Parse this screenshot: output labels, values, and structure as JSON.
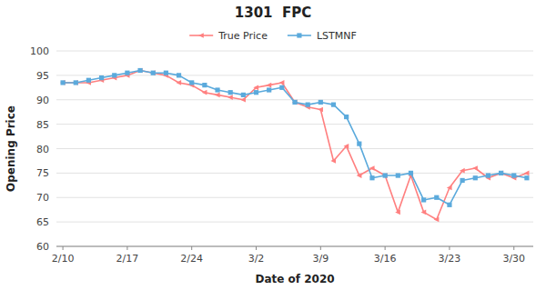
{
  "chart_data": {
    "type": "line",
    "title": "1301  FPC",
    "x_label": "Date of 2020",
    "y_label": "Opening Price",
    "categories": [
      "2/10",
      null,
      null,
      null,
      null,
      "2/17",
      null,
      null,
      null,
      null,
      "2/24",
      null,
      null,
      null,
      null,
      "3/2",
      null,
      null,
      null,
      null,
      "3/9",
      null,
      null,
      null,
      null,
      "3/16",
      null,
      null,
      null,
      null,
      "3/23",
      null,
      null,
      null,
      null,
      "3/30",
      null
    ],
    "series": [
      {
        "name": "True Price",
        "color": "#FF8080",
        "marker": "triangle-left",
        "values": [
          93.5,
          93.5,
          93.5,
          94.0,
          94.5,
          95.0,
          96.0,
          95.5,
          95.0,
          93.5,
          93.0,
          91.5,
          91.0,
          90.5,
          90.0,
          92.5,
          93.0,
          93.5,
          89.5,
          88.5,
          88.0,
          77.5,
          80.5,
          74.5,
          76.0,
          74.5,
          67.0,
          74.5,
          67.0,
          65.5,
          72.0,
          75.5,
          76.0,
          74.0,
          75.0,
          74.0,
          75.0
        ]
      },
      {
        "name": "LSTMNF",
        "color": "#5BAADC",
        "marker": "square",
        "values": [
          93.5,
          93.5,
          94.0,
          94.5,
          95.0,
          95.5,
          96.0,
          95.5,
          95.5,
          95.0,
          93.5,
          93.0,
          92.0,
          91.5,
          91.0,
          91.5,
          92.0,
          92.5,
          89.5,
          89.0,
          89.5,
          89.0,
          86.5,
          81.0,
          74.0,
          74.5,
          74.5,
          75.0,
          69.5,
          70.0,
          68.5,
          73.5,
          74.0,
          74.5,
          75.0,
          74.5,
          74.0
        ]
      }
    ],
    "ylim": [
      60,
      100
    ],
    "yticks": [
      60,
      65,
      70,
      75,
      80,
      85,
      90,
      95,
      100
    ],
    "grid": true,
    "legend": "top"
  }
}
